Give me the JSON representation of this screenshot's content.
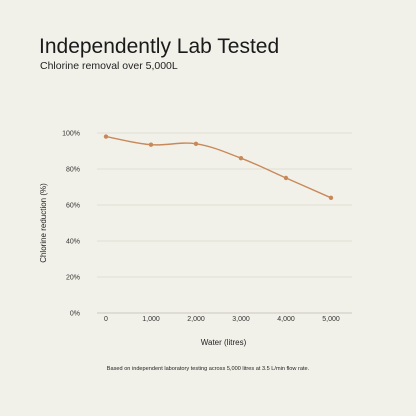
{
  "header": {
    "title": "Independently Lab Tested",
    "subtitle": "Chlorine removal over 5,000L"
  },
  "footnote": "Based on independent laboratory testing across 5,000 litres at 3.5 L/min flow rate.",
  "colors": {
    "background": "#f2f1e9",
    "line": "#c8895a",
    "grid": "#d9d7cc",
    "axis_text": "#333333"
  },
  "chart_data": {
    "type": "line",
    "x": [
      0,
      1000,
      2000,
      3000,
      4000,
      5000
    ],
    "x_tick_labels": [
      "0",
      "1,000",
      "2,000",
      "3,000",
      "4,000",
      "5,000"
    ],
    "y_ticks": [
      0,
      20,
      40,
      60,
      80,
      100
    ],
    "y_tick_labels": [
      "0%",
      "20%",
      "40%",
      "60%",
      "80%",
      "100%"
    ],
    "series": [
      {
        "values": [
          98,
          93.5,
          94,
          86,
          75,
          64
        ]
      }
    ],
    "xlabel": "Water (litres)",
    "ylabel": "Chlorine reduction (%)",
    "xlim": [
      0,
      5000
    ],
    "ylim": [
      0,
      100
    ],
    "grid": true,
    "legend": "none"
  }
}
